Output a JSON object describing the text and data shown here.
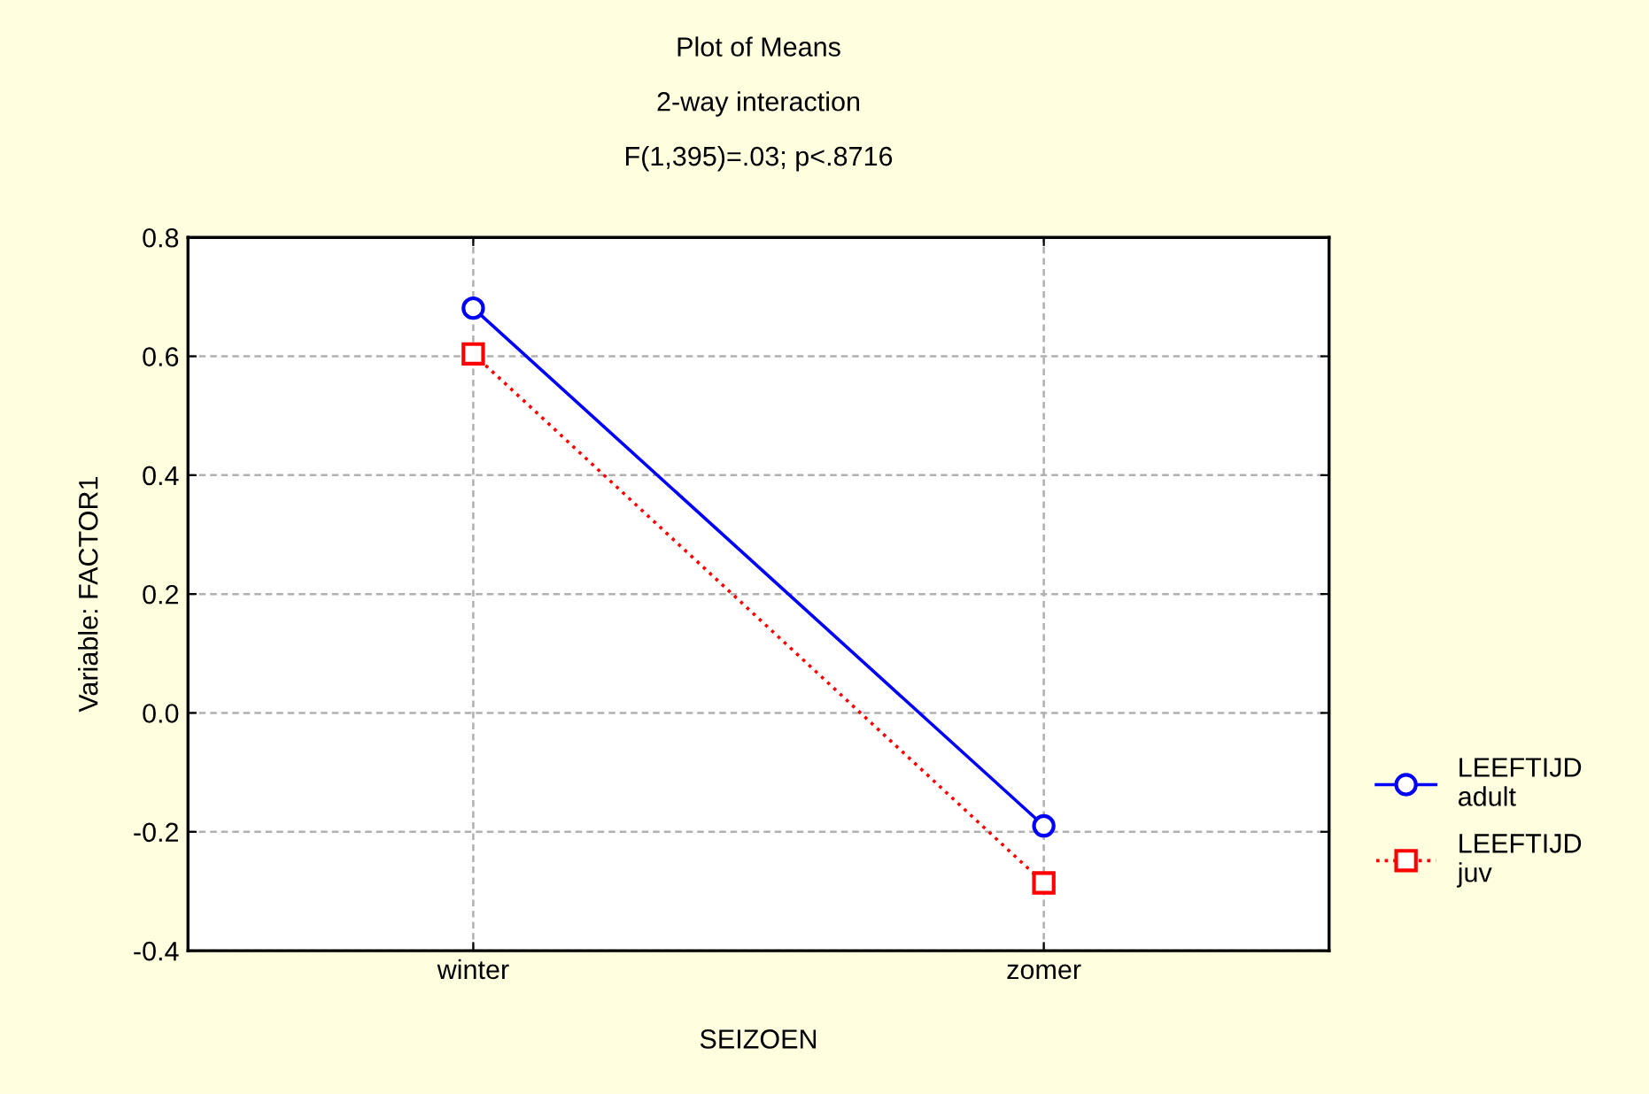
{
  "chart_data": {
    "type": "line",
    "title": "Plot of Means",
    "subtitle": "2-way interaction",
    "annotations": [
      "F(1,395)=.03; p<.8716"
    ],
    "xlabel": "SEIZOEN",
    "ylabel": "Variable: FACTOR1",
    "categories": [
      "winter",
      "zomer"
    ],
    "series": [
      {
        "name": "LEEFTIJD\nadult",
        "color": "#0000ff",
        "values": [
          0.681,
          -0.19
        ],
        "marker": "circle",
        "line_style": "solid"
      },
      {
        "name": "LEEFTIJD\njuv",
        "color": "#ff0000",
        "values": [
          0.604,
          -0.286
        ],
        "marker": "square",
        "line_style": "dotted"
      }
    ],
    "ylim": [
      -0.4,
      0.8
    ],
    "yticks": [
      {
        "value": -0.4,
        "label": "-0.4"
      },
      {
        "value": -0.2,
        "label": "-0.2"
      },
      {
        "value": 0,
        "label": "0.0"
      },
      {
        "value": 0.2,
        "label": "0.2"
      },
      {
        "value": 0.4,
        "label": "0.4"
      },
      {
        "value": 0.6,
        "label": "0.6"
      },
      {
        "value": 0.8,
        "label": "0.8"
      }
    ],
    "grid": true,
    "legend": "right"
  }
}
